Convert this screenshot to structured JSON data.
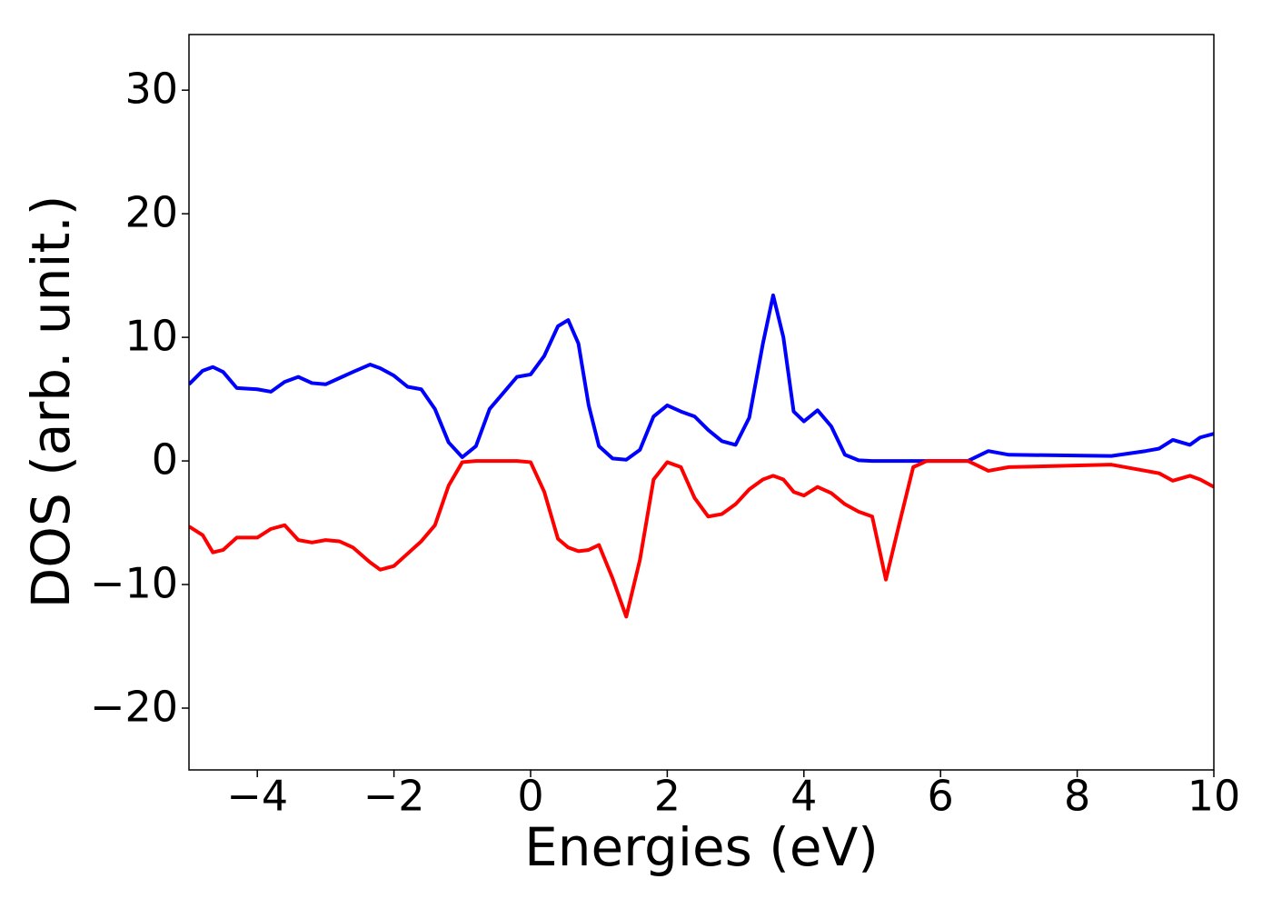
{
  "chart_data": {
    "type": "line",
    "xlabel": "Energies (eV)",
    "ylabel": "DOS (arb. unit.)",
    "x": [
      -5,
      -4.8,
      -4.65,
      -4.5,
      -4.3,
      -4,
      -3.8,
      -3.6,
      -3.4,
      -3.2,
      -3,
      -2.8,
      -2.6,
      -2.35,
      -2.2,
      -2,
      -1.8,
      -1.6,
      -1.4,
      -1.2,
      -1,
      -0.8,
      -0.6,
      -0.4,
      -0.2,
      0,
      0.2,
      0.4,
      0.55,
      0.7,
      0.85,
      1,
      1.2,
      1.4,
      1.6,
      1.8,
      2,
      2.2,
      2.4,
      2.6,
      2.8,
      3,
      3.2,
      3.4,
      3.55,
      3.7,
      3.85,
      4,
      4.2,
      4.4,
      4.6,
      4.8,
      5,
      5.2,
      5.4,
      5.6,
      5.8,
      6,
      6.4,
      6.7,
      7,
      8.5,
      9,
      9.2,
      9.4,
      9.65,
      9.8,
      10
    ],
    "series": [
      {
        "color": "#0000ff",
        "values": [
          6.2,
          7.3,
          7.6,
          7.2,
          5.9,
          5.8,
          5.6,
          6.4,
          6.8,
          6.3,
          6.2,
          6.7,
          7.2,
          7.8,
          7.5,
          6.9,
          6.0,
          5.8,
          4.2,
          1.5,
          0.3,
          1.2,
          4.2,
          5.5,
          6.8,
          7.0,
          8.5,
          10.9,
          11.4,
          9.5,
          4.5,
          1.2,
          0.2,
          0.1,
          0.9,
          3.6,
          4.5,
          4.0,
          3.6,
          2.5,
          1.6,
          1.3,
          3.5,
          9.5,
          13.4,
          10.0,
          4.0,
          3.2,
          4.1,
          2.8,
          0.5,
          0.05,
          0,
          0,
          0,
          0,
          0,
          0,
          0,
          0.8,
          0.5,
          0.4,
          0.8,
          1.0,
          1.7,
          1.3,
          1.9,
          2.2
        ]
      },
      {
        "color": "#ff0000",
        "values": [
          -5.3,
          -6.0,
          -7.4,
          -7.2,
          -6.2,
          -6.2,
          -5.5,
          -5.2,
          -6.4,
          -6.6,
          -6.4,
          -6.5,
          -7.0,
          -8.2,
          -8.8,
          -8.5,
          -7.5,
          -6.5,
          -5.2,
          -2.0,
          -0.1,
          0,
          0,
          0,
          0,
          -0.1,
          -2.5,
          -6.3,
          -7.0,
          -7.3,
          -7.2,
          -6.8,
          -9.5,
          -12.6,
          -8.0,
          -1.5,
          -0.1,
          -0.5,
          -3.0,
          -4.5,
          -4.3,
          -3.5,
          -2.3,
          -1.5,
          -1.2,
          -1.5,
          -2.5,
          -2.8,
          -2.1,
          -2.6,
          -3.5,
          -4.1,
          -4.5,
          -9.6,
          -5.0,
          -0.5,
          0,
          0,
          0,
          -0.8,
          -0.5,
          -0.3,
          -0.8,
          -1.0,
          -1.6,
          -1.2,
          -1.5,
          -2.1
        ]
      }
    ],
    "xlim": [
      -5,
      10
    ],
    "xticks": [
      {
        "value": -4,
        "label": "−4"
      },
      {
        "value": -2,
        "label": "−2"
      },
      0,
      2,
      4,
      6,
      8,
      10
    ],
    "ylim": [
      -25,
      34.5
    ],
    "yticks": [
      {
        "value": -20,
        "label": "−20"
      },
      {
        "value": -10,
        "label": "−10"
      },
      0,
      10,
      20,
      30
    ],
    "grid": false
  }
}
